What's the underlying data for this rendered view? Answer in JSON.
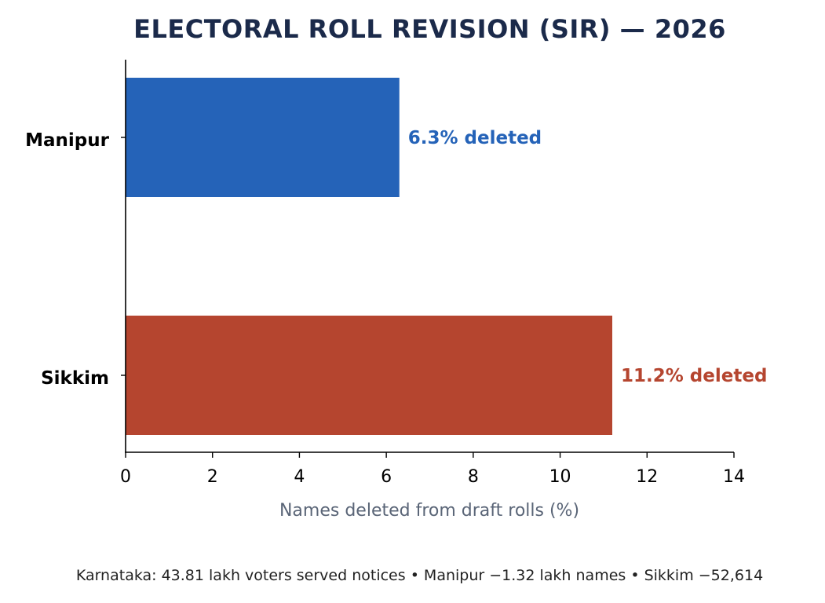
{
  "colors": {
    "title": "#1b2a4a",
    "axis": "#000000",
    "xlabel": "#5a6577",
    "footnote": "#222222"
  },
  "chart_data": {
    "type": "bar",
    "orientation": "horizontal",
    "title": "ELECTORAL ROLL REVISION (SIR) — 2026",
    "xlabel": "Names deleted from draft rolls (%)",
    "ylabel": "",
    "xlim": [
      0,
      14
    ],
    "xticks": [
      0,
      2,
      4,
      6,
      8,
      10,
      12,
      14
    ],
    "grid": false,
    "categories": [
      "Manipur",
      "Sikkim"
    ],
    "values": [
      6.3,
      11.2
    ],
    "bar_colors": [
      "#2563b8",
      "#b5452f"
    ],
    "data_labels": [
      "6.3% deleted",
      "11.2% deleted"
    ]
  },
  "footnote": "Karnataka: 43.81 lakh voters served notices  •  Manipur −1.32 lakh names • Sikkim −52,614"
}
